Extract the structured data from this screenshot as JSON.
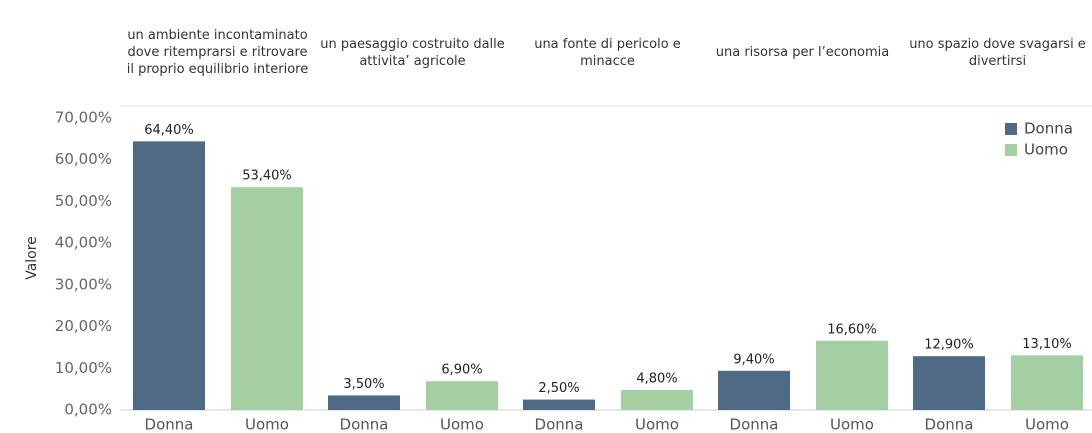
{
  "chart_data": {
    "type": "bar",
    "y_axis_label": "Valore",
    "categories": [
      "un ambiente incontaminato dove ritemprarsi e ritrovare il proprio equilibrio interiore",
      "un paesaggio costruito dalle attivita’ agricole",
      "una fonte di pericolo e minacce",
      "una risorsa per l’economia",
      "uno spazio dove svagarsi e divertirsi"
    ],
    "series": [
      {
        "name": "Donna",
        "color": "#4e6a84",
        "values": [
          64.4,
          3.5,
          2.5,
          9.4,
          12.9
        ],
        "value_labels": [
          "64,40%",
          "3,50%",
          "2,50%",
          "9,40%",
          "12,90%"
        ]
      },
      {
        "name": "Uomo",
        "color": "#a3cfa3",
        "values": [
          53.4,
          6.9,
          4.8,
          16.6,
          13.1
        ],
        "value_labels": [
          "53,40%",
          "6,90%",
          "4,80%",
          "16,60%",
          "13,10%"
        ]
      }
    ],
    "ylim": [
      0,
      70
    ],
    "yticks": [
      {
        "value": 0,
        "label": "0,00%"
      },
      {
        "value": 10,
        "label": "10,00%"
      },
      {
        "value": 20,
        "label": "20,00%"
      },
      {
        "value": 30,
        "label": "30,00%"
      },
      {
        "value": 40,
        "label": "40,00%"
      },
      {
        "value": 50,
        "label": "50,00%"
      },
      {
        "value": 60,
        "label": "60,00%"
      },
      {
        "value": 70,
        "label": "70,00%"
      }
    ],
    "legend": "top-right",
    "grid": false
  }
}
